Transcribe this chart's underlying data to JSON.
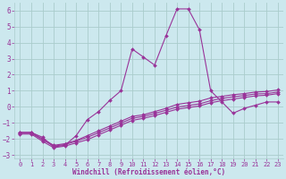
{
  "bg_color": "#cce8ee",
  "grid_color": "#aacccc",
  "line_color": "#993399",
  "tick_color": "#993399",
  "xlabel": "Windchill (Refroidissement éolien,°C)",
  "xlim": [
    -0.5,
    23.5
  ],
  "ylim": [
    -3.2,
    6.5
  ],
  "xticks": [
    0,
    1,
    2,
    3,
    4,
    5,
    6,
    7,
    8,
    9,
    10,
    11,
    12,
    13,
    14,
    15,
    16,
    17,
    18,
    19,
    20,
    21,
    22,
    23
  ],
  "yticks": [
    -3,
    -2,
    -1,
    0,
    1,
    2,
    3,
    4,
    5,
    6
  ],
  "line1": [
    [
      0,
      -1.6
    ],
    [
      1,
      -1.6
    ],
    [
      2,
      -1.9
    ],
    [
      3,
      -2.5
    ],
    [
      4,
      -2.4
    ],
    [
      5,
      -1.8
    ],
    [
      6,
      -0.8
    ],
    [
      7,
      -0.3
    ],
    [
      8,
      0.4
    ],
    [
      9,
      1.0
    ],
    [
      10,
      3.6
    ],
    [
      11,
      3.1
    ],
    [
      12,
      2.6
    ],
    [
      13,
      4.4
    ],
    [
      14,
      6.1
    ],
    [
      15,
      6.1
    ],
    [
      16,
      4.8
    ],
    [
      17,
      1.0
    ],
    [
      18,
      0.3
    ],
    [
      19,
      -0.4
    ],
    [
      20,
      -0.1
    ],
    [
      21,
      0.1
    ],
    [
      22,
      0.3
    ],
    [
      23,
      0.3
    ]
  ],
  "line2": [
    [
      0,
      -1.6
    ],
    [
      1,
      -1.6
    ],
    [
      2,
      -2.0
    ],
    [
      3,
      -2.4
    ],
    [
      4,
      -2.3
    ],
    [
      5,
      -2.1
    ],
    [
      6,
      -1.8
    ],
    [
      7,
      -1.5
    ],
    [
      8,
      -1.2
    ],
    [
      9,
      -0.9
    ],
    [
      10,
      -0.6
    ],
    [
      11,
      -0.5
    ],
    [
      12,
      -0.3
    ],
    [
      13,
      -0.1
    ],
    [
      14,
      0.15
    ],
    [
      15,
      0.25
    ],
    [
      16,
      0.35
    ],
    [
      17,
      0.55
    ],
    [
      18,
      0.65
    ],
    [
      19,
      0.75
    ],
    [
      20,
      0.82
    ],
    [
      21,
      0.92
    ],
    [
      22,
      0.95
    ],
    [
      23,
      1.05
    ]
  ],
  "line3": [
    [
      0,
      -1.7
    ],
    [
      1,
      -1.7
    ],
    [
      2,
      -2.15
    ],
    [
      3,
      -2.55
    ],
    [
      4,
      -2.45
    ],
    [
      5,
      -2.25
    ],
    [
      6,
      -2.05
    ],
    [
      7,
      -1.75
    ],
    [
      8,
      -1.45
    ],
    [
      9,
      -1.15
    ],
    [
      10,
      -0.85
    ],
    [
      11,
      -0.72
    ],
    [
      12,
      -0.55
    ],
    [
      13,
      -0.35
    ],
    [
      14,
      -0.15
    ],
    [
      15,
      -0.05
    ],
    [
      16,
      0.05
    ],
    [
      17,
      0.25
    ],
    [
      18,
      0.38
    ],
    [
      19,
      0.48
    ],
    [
      20,
      0.58
    ],
    [
      21,
      0.68
    ],
    [
      22,
      0.72
    ],
    [
      23,
      0.82
    ]
  ],
  "line4": [
    [
      0,
      -1.65
    ],
    [
      1,
      -1.65
    ],
    [
      2,
      -2.05
    ],
    [
      3,
      -2.45
    ],
    [
      4,
      -2.35
    ],
    [
      5,
      -2.15
    ],
    [
      6,
      -1.9
    ],
    [
      7,
      -1.62
    ],
    [
      8,
      -1.32
    ],
    [
      9,
      -1.02
    ],
    [
      10,
      -0.72
    ],
    [
      11,
      -0.6
    ],
    [
      12,
      -0.42
    ],
    [
      13,
      -0.22
    ],
    [
      14,
      -0.02
    ],
    [
      15,
      0.08
    ],
    [
      16,
      0.18
    ],
    [
      17,
      0.38
    ],
    [
      18,
      0.52
    ],
    [
      19,
      0.62
    ],
    [
      20,
      0.7
    ],
    [
      21,
      0.8
    ],
    [
      22,
      0.82
    ],
    [
      23,
      0.92
    ]
  ],
  "marker": "D",
  "markersize": 2.0,
  "linewidth": 0.8
}
